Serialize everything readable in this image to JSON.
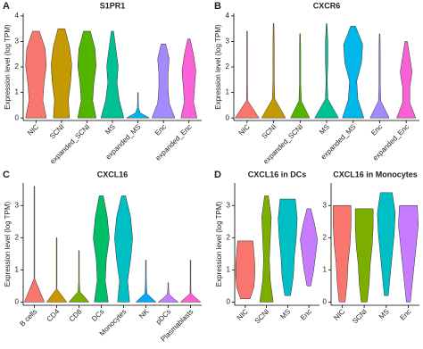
{
  "chart_data": [
    {
      "type": "violin",
      "panel": "A",
      "title": "S1PR1",
      "ylabel": "Expression level (log TPM)",
      "categories": [
        "NIC",
        "SCNI",
        "expanded_SCNI",
        "MS",
        "expanded_MS",
        "Enc",
        "expanded_Enc"
      ],
      "colors": [
        "#F8766D",
        "#C49A00",
        "#53B400",
        "#00C094",
        "#00B6EB",
        "#A58AFF",
        "#FB61D7"
      ],
      "violins": [
        {
          "min": 0,
          "max": 3.4,
          "widths": [
            0.9,
            0.6,
            0.7,
            0.9,
            0.8,
            0.3
          ]
        },
        {
          "min": 0,
          "max": 3.5,
          "widths": [
            0.7,
            0.6,
            0.8,
            0.9,
            0.7,
            0.3
          ]
        },
        {
          "min": 0,
          "max": 3.4,
          "widths": [
            0.8,
            0.5,
            0.6,
            0.8,
            0.7,
            0.3
          ]
        },
        {
          "min": 0,
          "max": 3.4,
          "widths": [
            1.0,
            0.6,
            0.4,
            0.5,
            0.3,
            0.1
          ]
        },
        {
          "min": 0,
          "max": 1.0,
          "widths": [
            1.0,
            0.2,
            0.05,
            0.03,
            0.03,
            0.02
          ]
        },
        {
          "min": 0,
          "max": 2.9,
          "widths": [
            1.0,
            0.5,
            0.4,
            0.4,
            0.5,
            0.2
          ]
        },
        {
          "min": 0,
          "max": 3.1,
          "widths": [
            0.7,
            0.4,
            0.5,
            0.6,
            0.4,
            0.1
          ]
        }
      ],
      "ylim": [
        -0.1,
        4.1
      ],
      "yticks": [
        0,
        1,
        2,
        3,
        4
      ]
    },
    {
      "type": "violin",
      "panel": "B",
      "title": "CXCR6",
      "ylabel": "Expression level (log TPM)",
      "categories": [
        "NIC",
        "SCNI",
        "expanded_SCNI",
        "MS",
        "expanded_MS",
        "Enc",
        "expanded_Enc"
      ],
      "colors": [
        "#F8766D",
        "#C49A00",
        "#53B400",
        "#00C094",
        "#00B6EB",
        "#A58AFF",
        "#FB61D7"
      ],
      "violins": [
        {
          "min": 0,
          "max": 3.4,
          "widths": [
            1.0,
            0.05,
            0.03,
            0.03,
            0.03,
            0.02
          ]
        },
        {
          "min": 0,
          "max": 3.7,
          "widths": [
            1.0,
            0.1,
            0.05,
            0.05,
            0.05,
            0.02
          ]
        },
        {
          "min": 0,
          "max": 3.3,
          "widths": [
            0.8,
            0.1,
            0.05,
            0.05,
            0.05,
            0.02
          ]
        },
        {
          "min": 0,
          "max": 3.7,
          "widths": [
            1.0,
            0.1,
            0.05,
            0.1,
            0.1,
            0.03
          ]
        },
        {
          "min": 0,
          "max": 3.6,
          "widths": [
            0.9,
            0.4,
            0.3,
            0.7,
            0.8,
            0.2
          ]
        },
        {
          "min": 0,
          "max": 3.3,
          "widths": [
            0.8,
            0.1,
            0.05,
            0.05,
            0.05,
            0.02
          ]
        },
        {
          "min": 0,
          "max": 3.0,
          "widths": [
            0.8,
            0.3,
            0.3,
            0.5,
            0.3,
            0.1
          ]
        }
      ],
      "ylim": [
        -0.1,
        4.1
      ],
      "yticks": [
        0,
        1,
        2,
        3,
        4
      ]
    },
    {
      "type": "violin",
      "panel": "C",
      "title": "CXCL16",
      "ylabel": "Expression level (log TPM)",
      "categories": [
        "B cells",
        "CD4",
        "CD8",
        "DCs",
        "Monocytes",
        "NK",
        "pDCs",
        "Plasmablasts"
      ],
      "colors": [
        "#F8766D",
        "#CD9600",
        "#7CAE00",
        "#00BE67",
        "#00BFC4",
        "#00A9FF",
        "#C77CFF",
        "#FF61CC"
      ],
      "violins": [
        {
          "min": 0,
          "max": 3.6,
          "widths": [
            1.0,
            0.02,
            0.02,
            0.02,
            0.02,
            0.02
          ]
        },
        {
          "min": 0,
          "max": 2.0,
          "widths": [
            1.0,
            0.03,
            0.02,
            0.02,
            0.02,
            0.02
          ]
        },
        {
          "min": 0,
          "max": 1.6,
          "widths": [
            1.0,
            0.1,
            0.03,
            0.02,
            0.02,
            0.02
          ]
        },
        {
          "min": 0,
          "max": 3.3,
          "widths": [
            0.7,
            0.4,
            0.5,
            0.8,
            0.6,
            0.2
          ]
        },
        {
          "min": 0,
          "max": 3.3,
          "widths": [
            0.6,
            0.4,
            0.7,
            0.9,
            0.7,
            0.2
          ]
        },
        {
          "min": 0,
          "max": 1.3,
          "widths": [
            1.0,
            0.1,
            0.05,
            0.03,
            0.02,
            0.02
          ]
        },
        {
          "min": 0,
          "max": 0.6,
          "widths": [
            1.0,
            0.5,
            0.1,
            0.05,
            0.03,
            0.02
          ]
        },
        {
          "min": 0,
          "max": 1.3,
          "widths": [
            1.0,
            0.05,
            0.03,
            0.02,
            0.02,
            0.02
          ]
        }
      ],
      "ylim": [
        -0.1,
        3.7
      ],
      "yticks": [
        0,
        1,
        2,
        3
      ]
    },
    {
      "type": "violin",
      "panel": "D",
      "title": "CXCL16 in DCs",
      "ylabel": "Expression level (log TPM)",
      "categories": [
        "NIC",
        "SCNI",
        "MS",
        "Enc"
      ],
      "colors": [
        "#F8766D",
        "#7CAE00",
        "#00BFC4",
        "#C77CFF"
      ],
      "violins": [
        {
          "min": 0.1,
          "max": 1.9,
          "widths": [
            0.5,
            0.9,
            1.0,
            1.0,
            0.9,
            0.8
          ]
        },
        {
          "min": 0,
          "max": 3.3,
          "widths": [
            0.7,
            0.4,
            0.3,
            0.4,
            0.5,
            0.2
          ]
        },
        {
          "min": 0.2,
          "max": 3.2,
          "widths": [
            0.3,
            0.6,
            0.7,
            0.9,
            1.0,
            0.8
          ]
        },
        {
          "min": 0.5,
          "max": 2.9,
          "widths": [
            0.2,
            0.5,
            0.7,
            0.9,
            0.6,
            0.2
          ]
        }
      ],
      "ylim": [
        -0.1,
        3.7
      ],
      "yticks": [
        0,
        1,
        2,
        3
      ]
    },
    {
      "type": "violin",
      "title": "CXCL16 in Monocytes",
      "categories": [
        "NIC",
        "SCNI",
        "MS",
        "Enc"
      ],
      "colors": [
        "#F8766D",
        "#7CAE00",
        "#00BFC4",
        "#C77CFF"
      ],
      "violins": [
        {
          "min": 0,
          "max": 3.0,
          "widths": [
            0.3,
            0.5,
            0.6,
            0.8,
            0.9,
            0.9
          ]
        },
        {
          "min": 0,
          "max": 2.9,
          "widths": [
            0.3,
            0.5,
            0.6,
            0.8,
            0.9,
            0.9
          ]
        },
        {
          "min": 0.2,
          "max": 3.4,
          "widths": [
            0.2,
            0.4,
            0.6,
            0.8,
            0.9,
            0.6
          ]
        },
        {
          "min": 0,
          "max": 3.0,
          "widths": [
            0.2,
            0.4,
            0.6,
            0.8,
            1.0,
            0.9
          ]
        }
      ],
      "ylim": [
        -0.1,
        3.7
      ],
      "yticks": [
        0,
        1,
        2,
        3
      ]
    }
  ]
}
